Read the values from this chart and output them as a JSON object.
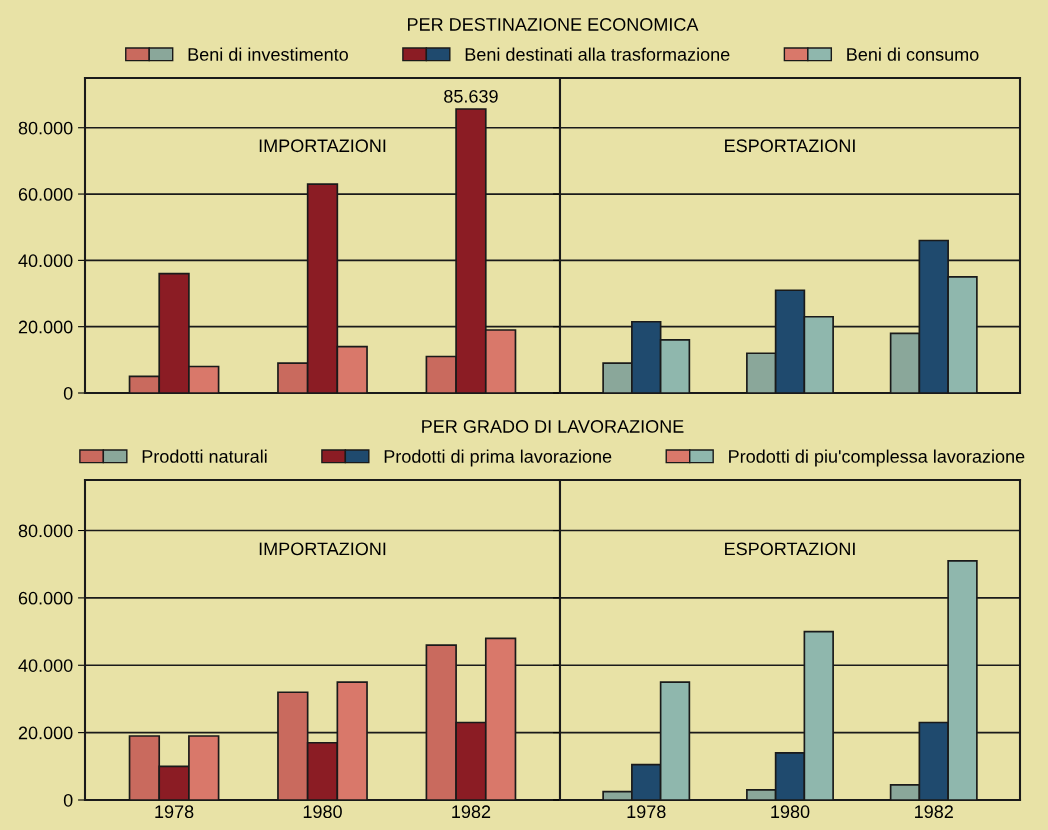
{
  "chart_data": [
    {
      "type": "bar",
      "title": "PER DESTINAZIONE ECONOMICA",
      "subtitle": "IMPORTAZIONI",
      "categories": [
        "1978",
        "1980",
        "1982"
      ],
      "ylim": [
        0,
        95000
      ],
      "yticks": [
        {
          "value": 0,
          "label": "0"
        },
        {
          "value": 20000,
          "label": "20.000"
        },
        {
          "value": 40000,
          "label": "40.000"
        },
        {
          "value": 60000,
          "label": "60.000"
        },
        {
          "value": 80000,
          "label": "80.000"
        }
      ],
      "grid": "y",
      "legend": "top",
      "tick_labels": "y",
      "series": [
        {
          "name": "Beni di investimento",
          "color": "#c96a5e",
          "values": [
            5000,
            9000,
            11000
          ]
        },
        {
          "name": "Beni destinati alla trasformazione",
          "color": "#8b1c24",
          "values": [
            36000,
            63000,
            85639
          ],
          "value_labels": [
            null,
            null,
            "85.639"
          ]
        },
        {
          "name": "Beni di consumo",
          "color": "#d9786a",
          "values": [
            8000,
            14000,
            19000
          ]
        }
      ]
    },
    {
      "type": "bar",
      "subtitle": "ESPORTAZIONI",
      "categories": [
        "1978",
        "1980",
        "1982"
      ],
      "ylim": [
        0,
        95000
      ],
      "yticks": [
        0,
        20000,
        40000,
        60000,
        80000
      ],
      "grid": "y",
      "tick_labels": false,
      "series": [
        {
          "color": "#8aa79a",
          "values": [
            9000,
            12000,
            18000
          ]
        },
        {
          "color": "#1f4a6e",
          "values": [
            21500,
            31000,
            46000
          ]
        },
        {
          "color": "#8fb7ad",
          "values": [
            16000,
            23000,
            35000
          ]
        }
      ]
    },
    {
      "type": "bar",
      "title": "PER GRADO DI LAVORAZIONE",
      "subtitle": "IMPORTAZIONI",
      "categories": [
        "1978",
        "1980",
        "1982"
      ],
      "ylim": [
        0,
        95000
      ],
      "yticks": [
        {
          "value": 0,
          "label": "0"
        },
        {
          "value": 20000,
          "label": "20.000"
        },
        {
          "value": 40000,
          "label": "40.000"
        },
        {
          "value": 60000,
          "label": "60.000"
        },
        {
          "value": 80000,
          "label": "80.000"
        }
      ],
      "grid": "y",
      "legend": "top",
      "series": [
        {
          "name": "Prodotti naturali",
          "color": "#c96a5e",
          "values": [
            19000,
            32000,
            46000
          ]
        },
        {
          "name": "Prodotti di prima lavorazione",
          "color": "#8b1c24",
          "values": [
            10000,
            17000,
            23000
          ]
        },
        {
          "name": "Prodotti di piu'complessa lavorazione",
          "color": "#d9786a",
          "values": [
            19000,
            35000,
            48000
          ]
        }
      ]
    },
    {
      "type": "bar",
      "subtitle": "ESPORTAZIONI",
      "categories": [
        "1978",
        "1980",
        "1982"
      ],
      "ylim": [
        0,
        95000
      ],
      "yticks": [
        0,
        20000,
        40000,
        60000,
        80000
      ],
      "grid": "y",
      "tick_labels": "x",
      "series": [
        {
          "color": "#8aa79a",
          "values": [
            2500,
            3000,
            4500
          ]
        },
        {
          "color": "#1f4a6e",
          "values": [
            10500,
            14000,
            23000
          ]
        },
        {
          "color": "#8fb7ad",
          "values": [
            35000,
            50000,
            71000
          ]
        }
      ]
    }
  ]
}
